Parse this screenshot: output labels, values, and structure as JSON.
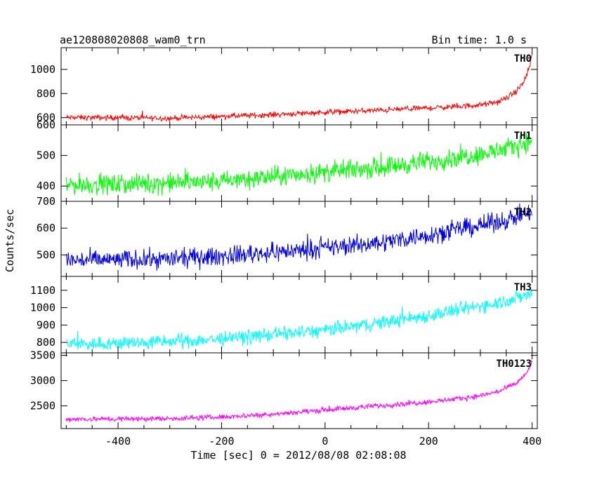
{
  "header": {
    "title": "ae120808020808_wam0_trn",
    "bin_time": "Bin time: 1.0 s"
  },
  "axes": {
    "xlabel": "Time [sec] 0 = 2012/08/08 02:08:08",
    "ylabel": "Counts/sec",
    "xlim": [
      -510,
      410
    ],
    "xticks": [
      -400,
      -200,
      0,
      200,
      400
    ]
  },
  "chart_data": [
    {
      "type": "line",
      "name": "TH0",
      "color": "#ff0000",
      "ylim": [
        540,
        1180
      ],
      "yticks": [
        600,
        800,
        1000
      ],
      "x": [
        -500,
        -400,
        -300,
        -200,
        -100,
        0,
        100,
        200,
        250,
        300,
        330,
        350,
        370,
        385,
        395,
        400
      ],
      "y": [
        600,
        600,
        595,
        610,
        625,
        645,
        660,
        680,
        690,
        705,
        725,
        760,
        820,
        900,
        1020,
        1120
      ],
      "noise": 20
    },
    {
      "type": "line",
      "name": "TH1",
      "color": "#00ff00",
      "ylim": [
        350,
        600
      ],
      "yticks": [
        400,
        500,
        600
      ],
      "x": [
        -500,
        -400,
        -300,
        -200,
        -100,
        0,
        100,
        200,
        300,
        350,
        400
      ],
      "y": [
        405,
        405,
        410,
        415,
        430,
        445,
        460,
        480,
        505,
        520,
        550
      ],
      "noise": 28
    },
    {
      "type": "line",
      "name": "TH2",
      "color": "#0000e6",
      "ylim": [
        420,
        700
      ],
      "yticks": [
        500,
        600,
        700
      ],
      "x": [
        -500,
        -400,
        -300,
        -200,
        -100,
        0,
        100,
        200,
        300,
        350,
        400
      ],
      "y": [
        480,
        482,
        485,
        495,
        510,
        525,
        545,
        575,
        610,
        630,
        660
      ],
      "noise": 30
    },
    {
      "type": "line",
      "name": "TH3",
      "color": "#00ffff",
      "ylim": [
        740,
        1180
      ],
      "yticks": [
        800,
        900,
        1000,
        1100
      ],
      "x": [
        -500,
        -400,
        -300,
        -200,
        -100,
        0,
        100,
        200,
        300,
        350,
        400
      ],
      "y": [
        790,
        795,
        805,
        820,
        845,
        870,
        910,
        955,
        1010,
        1040,
        1080
      ],
      "noise": 35
    },
    {
      "type": "line",
      "name": "TH0123",
      "color": "#ff00ff",
      "ylim": [
        2050,
        3550
      ],
      "yticks": [
        2500,
        3000,
        3500
      ],
      "x": [
        -500,
        -400,
        -300,
        -200,
        -100,
        0,
        100,
        200,
        250,
        300,
        340,
        370,
        390,
        400
      ],
      "y": [
        2240,
        2240,
        2250,
        2280,
        2340,
        2420,
        2500,
        2580,
        2630,
        2700,
        2800,
        2950,
        3150,
        3380
      ],
      "noise": 45
    }
  ]
}
